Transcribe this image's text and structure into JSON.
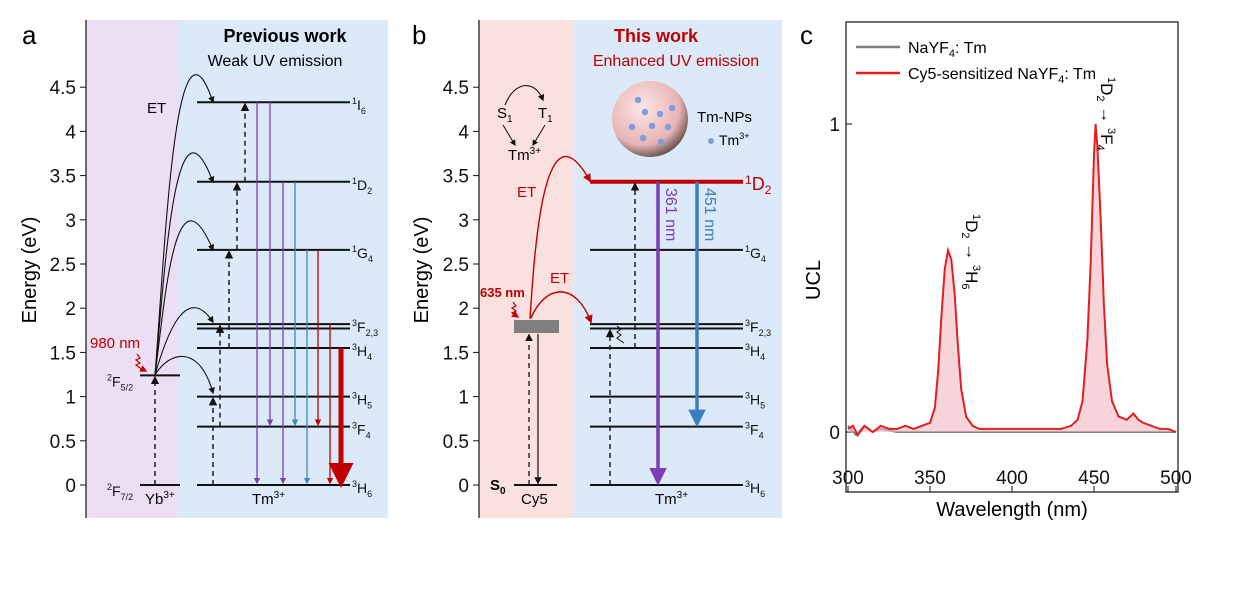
{
  "panel_a": {
    "letter": "a",
    "title": "Previous work",
    "subtitle": "Weak UV emission",
    "ylabel": "Energy (eV)",
    "yticks": [
      "0",
      "0.5",
      "1",
      "1.5",
      "2",
      "2.5",
      "3",
      "3.5",
      "4",
      "4.5"
    ],
    "et_label": "ET",
    "excitation": "980 nm",
    "donor": {
      "main": "Yb",
      "sup": "3+"
    },
    "acceptor": {
      "main": "Tm",
      "sup": "3+"
    },
    "donor_levels": [
      {
        "energy": 1.24,
        "sup": "2",
        "main": "F",
        "sub": "5/2"
      },
      {
        "energy": 0,
        "sup": "2",
        "main": "F",
        "sub": "7/2"
      }
    ],
    "levels": [
      {
        "energy": 4.33,
        "sup": "1",
        "main": "I",
        "sub": "6"
      },
      {
        "energy": 3.43,
        "sup": "1",
        "main": "D",
        "sub": "2"
      },
      {
        "energy": 2.66,
        "sup": "1",
        "main": "G",
        "sub": "4"
      },
      {
        "energy": 1.82,
        "sup": "3",
        "main": "F",
        "sub": "2,3"
      },
      {
        "energy": 1.77,
        "sup": "",
        "main": "",
        "sub": ""
      },
      {
        "energy": 1.55,
        "sup": "3",
        "main": "H",
        "sub": "4"
      },
      {
        "energy": 1.0,
        "sup": "3",
        "main": "H",
        "sub": "5"
      },
      {
        "energy": 0.66,
        "sup": "3",
        "main": "F",
        "sub": "4"
      },
      {
        "energy": 0,
        "sup": "3",
        "main": "H",
        "sub": "6"
      }
    ],
    "emissions": [
      {
        "from": 4.33,
        "to": 0,
        "color": "#7b3fb5"
      },
      {
        "from": 4.33,
        "to": 0.66,
        "color": "#7b3fb5"
      },
      {
        "from": 3.43,
        "to": 0,
        "color": "#7b3fb5"
      },
      {
        "from": 3.43,
        "to": 0.66,
        "color": "#3a86c8"
      },
      {
        "from": 2.66,
        "to": 0,
        "color": "#3a86c8"
      },
      {
        "from": 2.66,
        "to": 0.66,
        "color": "#c00000"
      },
      {
        "from": 1.82,
        "to": 0,
        "color": "#c00000"
      },
      {
        "from": 1.55,
        "to": 0,
        "color": "#c00000",
        "strong": true
      }
    ],
    "colors": {
      "donor_bg": "#ecdff3",
      "acceptor_bg": "#dbe9f8"
    }
  },
  "panel_b": {
    "letter": "b",
    "title": "This work",
    "subtitle": "Enhanced UV emission",
    "ylabel": "Energy (eV)",
    "yticks": [
      "0",
      "0.5",
      "1",
      "1.5",
      "2",
      "2.5",
      "3",
      "3.5",
      "4",
      "4.5"
    ],
    "et_label": "ET",
    "excitation": "635 nm",
    "ground": {
      "main": "S",
      "sub": "0"
    },
    "donor": "Cy5",
    "acceptor": {
      "main": "Tm",
      "sup": "3+"
    },
    "inset": {
      "s1": {
        "main": "S",
        "sub": "1"
      },
      "t1": {
        "main": "T",
        "sub": "1"
      },
      "tm": {
        "main": "Tm",
        "sup": "3+"
      }
    },
    "np_label": "Tm-NPs",
    "np_legend": {
      "main": "Tm",
      "sup": "3+"
    },
    "levels": [
      {
        "energy": 3.43,
        "sup": "1",
        "main": "D",
        "sub": "2",
        "highlight": true
      },
      {
        "energy": 2.66,
        "sup": "1",
        "main": "G",
        "sub": "4"
      },
      {
        "energy": 1.82,
        "sup": "3",
        "main": "F",
        "sub": "2,3"
      },
      {
        "energy": 1.77,
        "sup": "",
        "main": "",
        "sub": ""
      },
      {
        "energy": 1.55,
        "sup": "3",
        "main": "H",
        "sub": "4"
      },
      {
        "energy": 1.0,
        "sup": "3",
        "main": "H",
        "sub": "5"
      },
      {
        "energy": 0.66,
        "sup": "3",
        "main": "F",
        "sub": "4"
      },
      {
        "energy": 0,
        "sup": "3",
        "main": "H",
        "sub": "6"
      }
    ],
    "emissions": [
      {
        "from": 3.43,
        "to": 0,
        "color": "#7b3fb5",
        "label": "361 nm"
      },
      {
        "from": 3.43,
        "to": 0.66,
        "color": "#3a7fc0",
        "label": "451 nm"
      }
    ],
    "colors": {
      "donor_bg": "#fbe0e0",
      "acceptor_bg": "#dbe9f8",
      "accent": "#c00000"
    }
  },
  "chart_data": {
    "letter": "c",
    "type": "line",
    "xlabel": "Wavelength (nm)",
    "ylabel": "UCL",
    "xlim": [
      300,
      500
    ],
    "ylim": [
      -0.05,
      1.3
    ],
    "xticks": [
      300,
      350,
      400,
      450,
      500
    ],
    "yticks": [
      0,
      1
    ],
    "legend_position": "top-left",
    "annotations": [
      {
        "text": {
          "sup1": "1",
          "main1": "D",
          "sub1": "2",
          "arrow": "→",
          "sup2": "3",
          "main2": "H",
          "sub2": "6"
        },
        "x": 361
      },
      {
        "text": {
          "sup1": "1",
          "main1": "D",
          "sub1": "2",
          "arrow": "→",
          "sup2": "3",
          "main2": "F",
          "sub2": "4"
        },
        "x": 451
      }
    ],
    "series": [
      {
        "name": "NaYF4: Tm",
        "legend": {
          "a": "NaYF",
          "sub": "4",
          "b": ": Tm"
        },
        "color": "#808080",
        "x": [
          300,
          305,
          310,
          315,
          320,
          330,
          340,
          350,
          360,
          370,
          380,
          390,
          400,
          410,
          420,
          430,
          440,
          450,
          460,
          470,
          480,
          490,
          500
        ],
        "y": [
          0.02,
          -0.01,
          0.02,
          0.0,
          0.01,
          0.0,
          0.0,
          0.0,
          0.0,
          0.0,
          0.0,
          0.0,
          0.0,
          0.0,
          0.0,
          0.0,
          0.0,
          0.0,
          0.0,
          0.0,
          0.0,
          0.0,
          0.0
        ]
      },
      {
        "name": "Cy5-sensitized NaYF4: Tm",
        "legend": {
          "a": "Cy5-sensitized NaYF",
          "sub": "4",
          "b": ": Tm"
        },
        "color": "#e02020",
        "x": [
          300,
          303,
          306,
          310,
          315,
          320,
          325,
          330,
          335,
          340,
          345,
          350,
          353,
          355,
          357,
          359,
          361,
          363,
          365,
          367,
          369,
          372,
          376,
          380,
          390,
          400,
          410,
          420,
          430,
          436,
          440,
          443,
          446,
          448,
          450,
          451,
          452,
          454,
          456,
          458,
          461,
          465,
          470,
          474,
          477,
          480,
          485,
          490,
          495,
          500
        ],
        "y": [
          0.01,
          0.02,
          -0.01,
          0.02,
          0.0,
          0.02,
          0.01,
          0.01,
          0.02,
          0.01,
          0.02,
          0.03,
          0.08,
          0.2,
          0.38,
          0.53,
          0.59,
          0.56,
          0.45,
          0.28,
          0.14,
          0.05,
          0.02,
          0.01,
          0.01,
          0.01,
          0.01,
          0.01,
          0.01,
          0.02,
          0.04,
          0.1,
          0.3,
          0.55,
          0.9,
          1.0,
          0.93,
          0.7,
          0.42,
          0.22,
          0.1,
          0.05,
          0.04,
          0.06,
          0.04,
          0.03,
          0.02,
          0.01,
          0.01,
          0.0
        ]
      }
    ]
  }
}
